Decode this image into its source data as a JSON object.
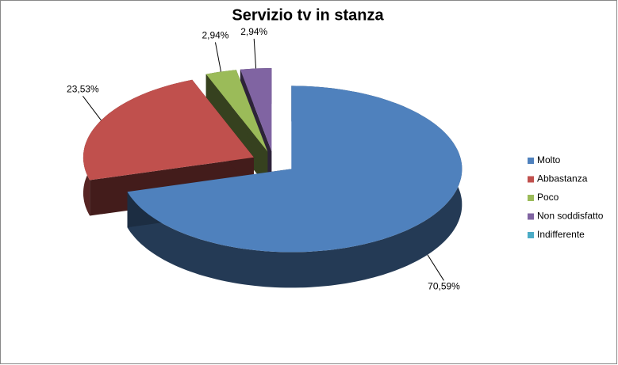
{
  "chart_data": {
    "type": "pie3d",
    "title": "Servizio tv in stanza",
    "categories": [
      "Molto",
      "Abbastanza",
      "Poco",
      "Non soddisfatto",
      "Indifferente"
    ],
    "values": [
      70.59,
      23.53,
      2.94,
      2.94,
      0
    ],
    "value_labels": [
      "70,59%",
      "23,53%",
      "2,94%",
      "2,94%",
      null
    ],
    "colors": [
      "#4f81bd",
      "#c0504d",
      "#9bbb59",
      "#8064a2",
      "#4bacc6"
    ],
    "legend": "right"
  }
}
